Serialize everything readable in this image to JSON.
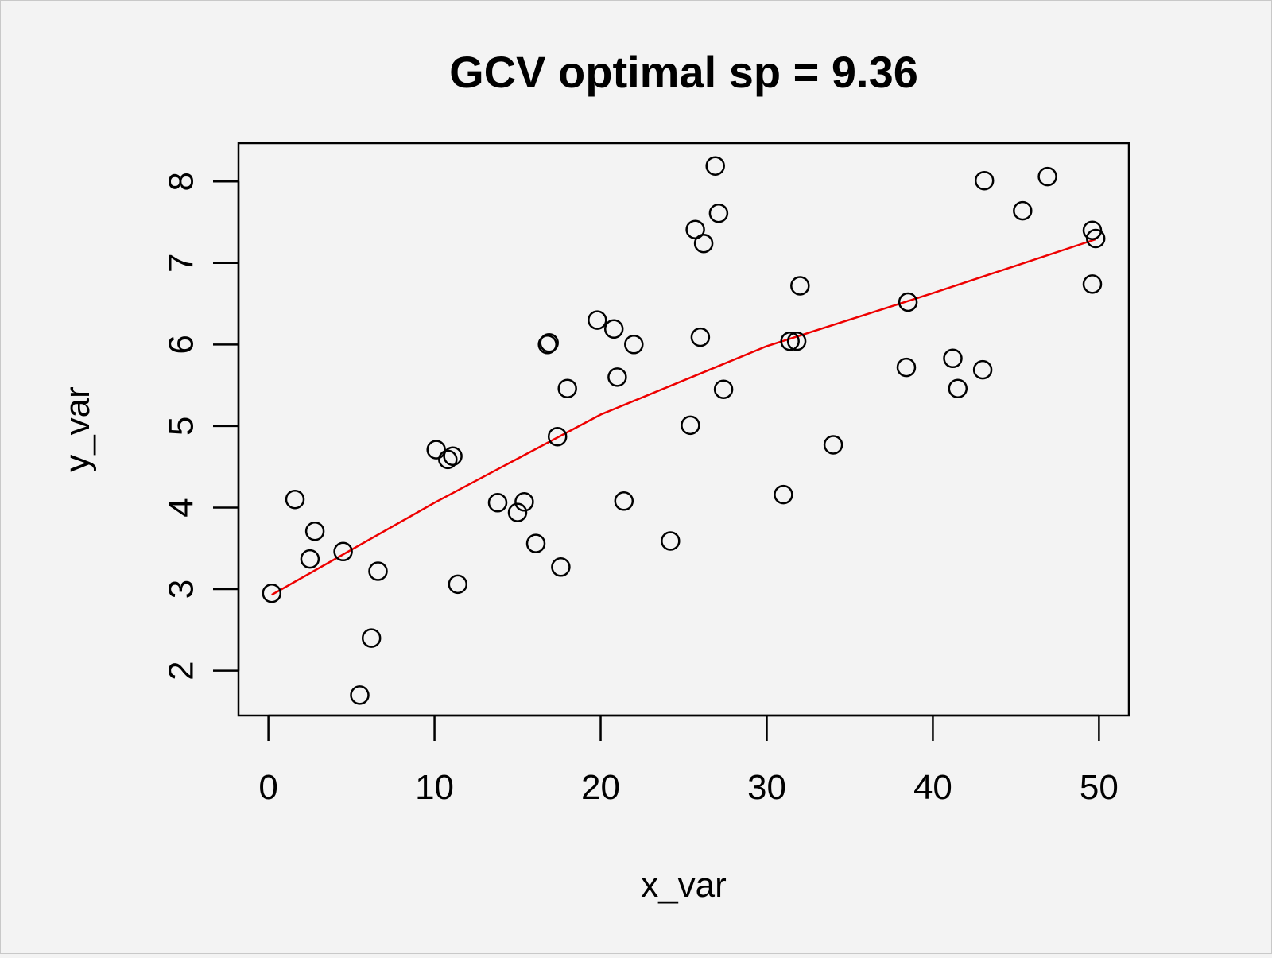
{
  "chart_data": {
    "type": "scatter",
    "title": "GCV optimal sp = 9.36",
    "xlabel": "x_var",
    "ylabel": "y_var",
    "xlim": [
      -1.8,
      51.8
    ],
    "ylim": [
      1.45,
      8.47
    ],
    "xticks": [
      "0",
      "10",
      "20",
      "30",
      "40",
      "50"
    ],
    "yticks": [
      "2",
      "3",
      "4",
      "5",
      "6",
      "7",
      "8"
    ],
    "grid": false,
    "legend": "none",
    "colors": {
      "points": "#000000",
      "smooth_line": "#ee0000",
      "background": "#f3f3f3"
    },
    "points": [
      [
        0.2,
        2.95
      ],
      [
        1.6,
        4.1
      ],
      [
        2.5,
        3.37
      ],
      [
        2.8,
        3.71
      ],
      [
        4.5,
        3.46
      ],
      [
        5.5,
        1.7
      ],
      [
        6.2,
        2.4
      ],
      [
        6.6,
        3.22
      ],
      [
        10.1,
        4.71
      ],
      [
        10.8,
        4.59
      ],
      [
        11.1,
        4.63
      ],
      [
        11.4,
        3.06
      ],
      [
        13.8,
        4.06
      ],
      [
        15.0,
        3.94
      ],
      [
        15.4,
        4.07
      ],
      [
        16.1,
        3.56
      ],
      [
        16.8,
        6.0
      ],
      [
        16.9,
        6.02
      ],
      [
        17.4,
        4.87
      ],
      [
        17.6,
        3.27
      ],
      [
        18.0,
        5.46
      ],
      [
        19.8,
        6.3
      ],
      [
        20.8,
        6.19
      ],
      [
        21.0,
        5.6
      ],
      [
        21.4,
        4.08
      ],
      [
        22.0,
        6.0
      ],
      [
        24.2,
        3.59
      ],
      [
        25.4,
        5.01
      ],
      [
        25.7,
        7.41
      ],
      [
        26.0,
        6.09
      ],
      [
        26.2,
        7.24
      ],
      [
        26.9,
        8.19
      ],
      [
        27.1,
        7.61
      ],
      [
        27.4,
        5.45
      ],
      [
        31.0,
        4.16
      ],
      [
        31.4,
        6.04
      ],
      [
        31.8,
        6.04
      ],
      [
        32.0,
        6.72
      ],
      [
        34.0,
        4.77
      ],
      [
        38.4,
        5.72
      ],
      [
        38.5,
        6.52
      ],
      [
        41.2,
        5.83
      ],
      [
        41.5,
        5.46
      ],
      [
        43.0,
        5.69
      ],
      [
        43.1,
        8.01
      ],
      [
        45.4,
        7.64
      ],
      [
        46.9,
        8.06
      ],
      [
        49.6,
        7.4
      ],
      [
        49.6,
        6.74
      ],
      [
        49.8,
        7.3
      ]
    ],
    "smooth_line": [
      [
        0.2,
        2.93
      ],
      [
        10,
        4.06
      ],
      [
        20,
        5.14
      ],
      [
        30,
        5.98
      ],
      [
        40,
        6.63
      ],
      [
        49.8,
        7.29
      ]
    ]
  }
}
